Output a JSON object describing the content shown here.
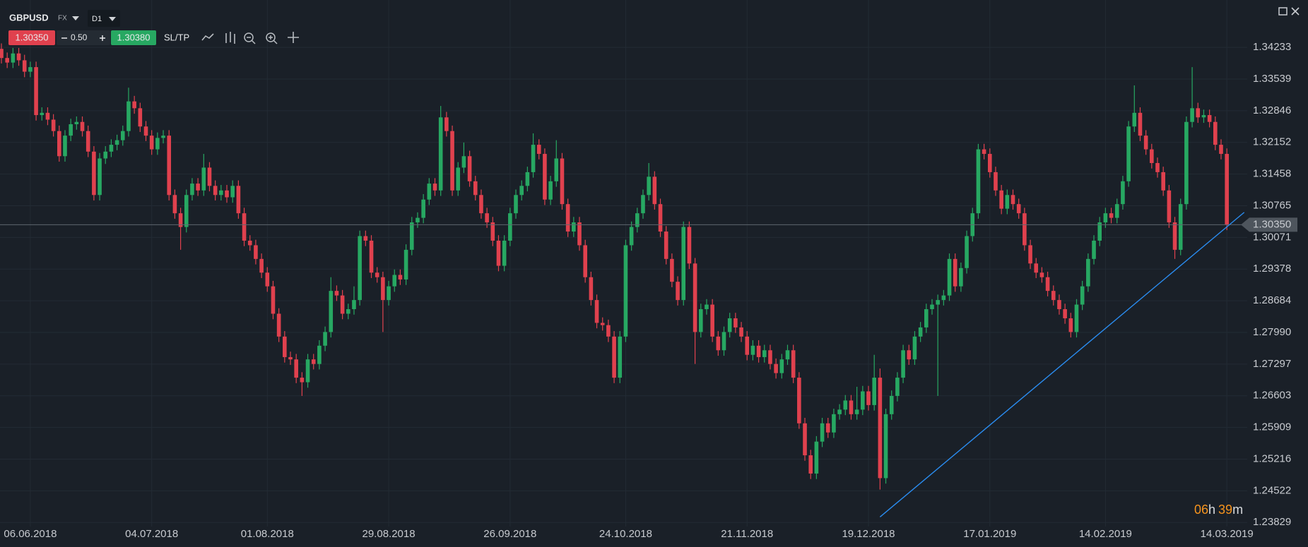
{
  "toolbar": {
    "symbol": "GBPUSD",
    "market": "FX",
    "timeframe": "D1",
    "bid": "1.30350",
    "spread": "0.50",
    "ask": "1.30380",
    "sltp": "SL/TP"
  },
  "timer": {
    "hours": "06",
    "hours_unit": "h",
    "minutes": "39",
    "minutes_unit": "m"
  },
  "chart_data": {
    "type": "candlestick",
    "categories": [
      null,
      null,
      null,
      null,
      null,
      "06.06.2018",
      null,
      null,
      null,
      null,
      null,
      null,
      null,
      null,
      null,
      null,
      null,
      null,
      null,
      null,
      null,
      null,
      null,
      null,
      null,
      null,
      "04.07.2018",
      null,
      null,
      null,
      null,
      null,
      null,
      null,
      null,
      null,
      null,
      null,
      null,
      null,
      null,
      null,
      null,
      null,
      null,
      null,
      "01.08.2018",
      null,
      null,
      null,
      null,
      null,
      null,
      null,
      null,
      null,
      null,
      null,
      null,
      null,
      null,
      null,
      null,
      null,
      null,
      null,
      null,
      "29.08.2018",
      null,
      null,
      null,
      null,
      null,
      null,
      null,
      null,
      null,
      null,
      null,
      null,
      null,
      null,
      null,
      null,
      null,
      null,
      null,
      null,
      "26.09.2018",
      null,
      null,
      null,
      null,
      null,
      null,
      null,
      null,
      null,
      null,
      null,
      null,
      null,
      null,
      null,
      null,
      null,
      null,
      null,
      "24.10.2018",
      null,
      null,
      null,
      null,
      null,
      null,
      null,
      null,
      null,
      null,
      null,
      null,
      null,
      null,
      null,
      null,
      null,
      null,
      null,
      null,
      "21.11.2018",
      null,
      null,
      null,
      null,
      null,
      null,
      null,
      null,
      null,
      null,
      null,
      null,
      null,
      null,
      null,
      null,
      null,
      null,
      null,
      null,
      "19.12.2018",
      null,
      null,
      null,
      null,
      null,
      null,
      null,
      null,
      null,
      null,
      null,
      null,
      null,
      null,
      null,
      null,
      null,
      null,
      null,
      null,
      "17.01.2019",
      null,
      null,
      null,
      null,
      null,
      null,
      null,
      null,
      null,
      null,
      null,
      null,
      null,
      null,
      null,
      null,
      null,
      null,
      null,
      "14.02.2019",
      null,
      null,
      null,
      null,
      null,
      null,
      null,
      null,
      null,
      null,
      null,
      null,
      null,
      null,
      null,
      null,
      null,
      null,
      null,
      null,
      "14.03.2019"
    ],
    "open": [
      1.342,
      1.34,
      1.339,
      1.341,
      1.3395,
      1.337,
      1.338,
      1.3275,
      1.328,
      1.3265,
      1.324,
      1.3185,
      1.323,
      1.3255,
      1.326,
      1.324,
      1.3195,
      1.31,
      1.318,
      1.3195,
      1.321,
      1.322,
      1.324,
      1.3305,
      1.329,
      1.325,
      1.323,
      1.32,
      1.3225,
      1.323,
      1.31,
      1.306,
      1.303,
      1.31,
      1.3125,
      1.311,
      1.316,
      1.312,
      1.31,
      1.311,
      1.3095,
      1.312,
      1.306,
      1.3,
      1.299,
      1.296,
      1.293,
      1.29,
      1.284,
      1.279,
      1.2745,
      1.274,
      1.27,
      1.269,
      1.274,
      1.273,
      1.277,
      1.28,
      1.289,
      1.288,
      1.284,
      1.285,
      1.287,
      1.301,
      1.3,
      1.293,
      1.292,
      1.287,
      1.29,
      1.2925,
      1.2915,
      1.298,
      1.304,
      1.305,
      1.309,
      1.3125,
      1.311,
      1.327,
      1.324,
      1.311,
      1.316,
      1.3185,
      1.313,
      1.31,
      1.306,
      1.304,
      1.3,
      1.2945,
      1.3,
      1.306,
      1.31,
      1.312,
      1.315,
      1.321,
      1.319,
      1.309,
      1.313,
      1.318,
      1.308,
      1.302,
      1.304,
      1.299,
      1.292,
      1.287,
      1.282,
      1.2815,
      1.279,
      1.27,
      1.279,
      1.299,
      1.303,
      1.306,
      1.31,
      1.314,
      1.308,
      1.302,
      1.296,
      1.291,
      1.287,
      1.303,
      1.295,
      1.28,
      1.285,
      1.286,
      1.279,
      1.276,
      1.28,
      1.283,
      1.281,
      1.279,
      1.275,
      1.277,
      1.2745,
      1.276,
      1.273,
      1.271,
      1.274,
      1.276,
      1.27,
      1.26,
      1.253,
      1.249,
      1.256,
      1.26,
      1.258,
      1.262,
      1.263,
      1.265,
      1.262,
      1.263,
      1.267,
      1.264,
      1.27,
      1.248,
      1.262,
      1.266,
      1.27,
      1.276,
      1.274,
      1.279,
      1.281,
      1.285,
      1.286,
      1.287,
      1.288,
      1.296,
      1.29,
      1.294,
      1.301,
      1.306,
      1.32,
      1.319,
      1.315,
      1.311,
      1.307,
      1.31,
      1.308,
      1.306,
      1.299,
      1.295,
      1.293,
      1.292,
      1.289,
      1.287,
      1.285,
      1.283,
      1.28,
      1.286,
      1.29,
      1.296,
      1.3,
      1.304,
      1.306,
      1.305,
      1.308,
      1.313,
      1.325,
      1.328,
      1.323,
      1.32,
      1.317,
      1.315,
      1.311,
      1.304,
      1.298,
      1.308,
      1.326,
      1.329,
      1.327,
      1.3275,
      1.326,
      1.321,
      1.319
    ],
    "high": [
      1.3432,
      1.3412,
      1.3422,
      1.3422,
      1.3407,
      1.3392,
      1.3392,
      1.3292,
      1.3292,
      1.3277,
      1.3252,
      1.3242,
      1.3267,
      1.3272,
      1.3272,
      1.3252,
      1.3207,
      1.3192,
      1.3207,
      1.3222,
      1.3232,
      1.3252,
      1.3335,
      1.3317,
      1.3302,
      1.3262,
      1.3242,
      1.3237,
      1.3242,
      1.3242,
      1.3112,
      1.3072,
      1.3112,
      1.3137,
      1.3137,
      1.319,
      1.3172,
      1.3132,
      1.3122,
      1.3122,
      1.3132,
      1.3132,
      1.3072,
      1.3012,
      1.3002,
      1.2972,
      1.2942,
      1.2912,
      1.2852,
      1.2802,
      1.2757,
      1.2752,
      1.2712,
      1.2752,
      1.2752,
      1.2782,
      1.2812,
      1.292,
      1.2902,
      1.2892,
      1.2862,
      1.29,
      1.3022,
      1.3022,
      1.3012,
      1.2942,
      1.2932,
      1.2912,
      1.2937,
      1.2937,
      1.2992,
      1.3052,
      1.3062,
      1.3102,
      1.3137,
      1.3137,
      1.3295,
      1.3282,
      1.3252,
      1.3172,
      1.3215,
      1.3197,
      1.3142,
      1.3112,
      1.3072,
      1.3052,
      1.3012,
      1.3012,
      1.3072,
      1.3112,
      1.3132,
      1.3162,
      1.3235,
      1.3222,
      1.3202,
      1.3142,
      1.322,
      1.3192,
      1.3092,
      1.3052,
      1.3052,
      1.3002,
      1.2932,
      1.2882,
      1.2832,
      1.2827,
      1.2802,
      1.2802,
      1.3002,
      1.3042,
      1.3072,
      1.3112,
      1.317,
      1.3152,
      1.3092,
      1.3032,
      1.2972,
      1.2922,
      1.3042,
      1.3042,
      1.2962,
      1.2862,
      1.2872,
      1.2872,
      1.2802,
      1.2812,
      1.2842,
      1.2842,
      1.2822,
      1.2802,
      1.2782,
      1.2782,
      1.2772,
      1.2772,
      1.2742,
      1.2752,
      1.2772,
      1.2772,
      1.2712,
      1.2612,
      1.2542,
      1.2572,
      1.2612,
      1.2612,
      1.2632,
      1.2642,
      1.2662,
      1.2662,
      1.268,
      1.2682,
      1.2682,
      1.275,
      1.272,
      1.2632,
      1.2672,
      1.2712,
      1.2772,
      1.2772,
      1.2802,
      1.2822,
      1.2862,
      1.2872,
      1.2882,
      1.2892,
      1.2972,
      1.2972,
      1.2952,
      1.3022,
      1.3072,
      1.3212,
      1.3212,
      1.3202,
      1.3162,
      1.3122,
      1.3112,
      1.3112,
      1.3092,
      1.3072,
      1.3002,
      1.2962,
      1.2942,
      1.2932,
      1.2902,
      1.2882,
      1.2862,
      1.2842,
      1.2872,
      1.2912,
      1.2972,
      1.3012,
      1.3052,
      1.3072,
      1.3072,
      1.3092,
      1.3142,
      1.3262,
      1.334,
      1.3292,
      1.3242,
      1.3212,
      1.3182,
      1.3162,
      1.3122,
      1.3052,
      1.3092,
      1.3272,
      1.338,
      1.3302,
      1.3287,
      1.3287,
      1.3272,
      1.3222,
      1.3202
    ],
    "low": [
      1.3388,
      1.3378,
      1.3378,
      1.3383,
      1.3358,
      1.3358,
      1.3263,
      1.3263,
      1.3253,
      1.3228,
      1.3173,
      1.3173,
      1.3218,
      1.3243,
      1.3228,
      1.3183,
      1.3088,
      1.3088,
      1.3168,
      1.3183,
      1.3198,
      1.3208,
      1.3228,
      1.3278,
      1.3238,
      1.3218,
      1.3188,
      1.3188,
      1.3213,
      1.3088,
      1.3048,
      1.298,
      1.3018,
      1.3088,
      1.3098,
      1.3098,
      1.3108,
      1.3088,
      1.3088,
      1.3083,
      1.3083,
      1.3048,
      1.2988,
      1.2978,
      1.2948,
      1.2918,
      1.2888,
      1.2828,
      1.2778,
      1.2733,
      1.2728,
      1.2688,
      1.266,
      1.2678,
      1.2718,
      1.2718,
      1.2758,
      1.2788,
      1.2868,
      1.2828,
      1.2828,
      1.2838,
      1.2858,
      1.2988,
      1.2918,
      1.2908,
      1.28,
      1.2858,
      1.2888,
      1.2903,
      1.2903,
      1.2968,
      1.3028,
      1.3038,
      1.3078,
      1.3098,
      1.3098,
      1.3228,
      1.3098,
      1.3098,
      1.3148,
      1.3118,
      1.3088,
      1.3048,
      1.3028,
      1.2988,
      1.2933,
      1.2933,
      1.2988,
      1.3048,
      1.3088,
      1.3108,
      1.3138,
      1.3178,
      1.3078,
      1.3078,
      1.3118,
      1.3068,
      1.3008,
      1.3008,
      1.2978,
      1.2908,
      1.2858,
      1.2808,
      1.2803,
      1.2778,
      1.2688,
      1.2688,
      1.2778,
      1.2978,
      1.3018,
      1.3048,
      1.3088,
      1.3068,
      1.3008,
      1.2948,
      1.2898,
      1.2858,
      1.2858,
      1.2938,
      1.273,
      1.2788,
      1.2838,
      1.2778,
      1.2748,
      1.2748,
      1.2788,
      1.2798,
      1.2778,
      1.2738,
      1.2738,
      1.2733,
      1.2733,
      1.2718,
      1.2698,
      1.2698,
      1.2728,
      1.2688,
      1.2588,
      1.2518,
      1.2478,
      1.2478,
      1.2548,
      1.2568,
      1.2568,
      1.2608,
      1.2618,
      1.2608,
      1.2608,
      1.2618,
      1.2628,
      1.2628,
      1.2455,
      1.2468,
      1.2608,
      1.2648,
      1.2688,
      1.2728,
      1.2728,
      1.2778,
      1.2798,
      1.2838,
      1.266,
      1.2858,
      1.2868,
      1.2888,
      1.2888,
      1.2928,
      1.2998,
      1.3048,
      1.3178,
      1.3138,
      1.3098,
      1.3058,
      1.3058,
      1.3068,
      1.3048,
      1.2978,
      1.2938,
      1.2918,
      1.2908,
      1.2878,
      1.2858,
      1.2838,
      1.2818,
      1.2788,
      1.2788,
      1.2848,
      1.2888,
      1.2948,
      1.2988,
      1.3028,
      1.3038,
      1.3038,
      1.3068,
      1.3118,
      1.3238,
      1.3218,
      1.3188,
      1.3158,
      1.3138,
      1.3098,
      1.3028,
      1.296,
      1.2968,
      1.3068,
      1.3248,
      1.3258,
      1.3258,
      1.3248,
      1.3198,
      1.3178,
      1.3023
    ],
    "close": [
      1.34,
      1.339,
      1.341,
      1.3395,
      1.337,
      1.338,
      1.3275,
      1.328,
      1.3265,
      1.324,
      1.3185,
      1.323,
      1.3255,
      1.326,
      1.324,
      1.3195,
      1.31,
      1.318,
      1.3195,
      1.321,
      1.322,
      1.324,
      1.3305,
      1.329,
      1.325,
      1.323,
      1.32,
      1.3225,
      1.323,
      1.31,
      1.306,
      1.303,
      1.31,
      1.3125,
      1.311,
      1.316,
      1.312,
      1.31,
      1.311,
      1.3095,
      1.312,
      1.306,
      1.3,
      1.299,
      1.296,
      1.293,
      1.29,
      1.284,
      1.279,
      1.2745,
      1.274,
      1.27,
      1.269,
      1.274,
      1.273,
      1.277,
      1.28,
      1.289,
      1.288,
      1.284,
      1.285,
      1.287,
      1.301,
      1.3,
      1.293,
      1.292,
      1.287,
      1.29,
      1.2925,
      1.2915,
      1.298,
      1.304,
      1.305,
      1.309,
      1.3125,
      1.311,
      1.327,
      1.324,
      1.311,
      1.316,
      1.3185,
      1.313,
      1.31,
      1.306,
      1.304,
      1.3,
      1.2945,
      1.3,
      1.306,
      1.31,
      1.312,
      1.315,
      1.321,
      1.319,
      1.309,
      1.313,
      1.318,
      1.308,
      1.302,
      1.304,
      1.299,
      1.292,
      1.287,
      1.282,
      1.2815,
      1.279,
      1.27,
      1.279,
      1.299,
      1.303,
      1.306,
      1.31,
      1.314,
      1.308,
      1.302,
      1.296,
      1.291,
      1.287,
      1.303,
      1.295,
      1.28,
      1.285,
      1.286,
      1.279,
      1.276,
      1.28,
      1.283,
      1.281,
      1.279,
      1.275,
      1.277,
      1.2745,
      1.276,
      1.273,
      1.271,
      1.274,
      1.276,
      1.27,
      1.26,
      1.253,
      1.249,
      1.256,
      1.26,
      1.258,
      1.262,
      1.263,
      1.265,
      1.262,
      1.263,
      1.267,
      1.264,
      1.27,
      1.248,
      1.262,
      1.266,
      1.27,
      1.276,
      1.274,
      1.279,
      1.281,
      1.285,
      1.286,
      1.287,
      1.288,
      1.296,
      1.29,
      1.294,
      1.301,
      1.306,
      1.32,
      1.319,
      1.315,
      1.311,
      1.307,
      1.31,
      1.308,
      1.306,
      1.299,
      1.295,
      1.293,
      1.292,
      1.289,
      1.287,
      1.285,
      1.283,
      1.28,
      1.286,
      1.29,
      1.296,
      1.3,
      1.304,
      1.306,
      1.305,
      1.308,
      1.313,
      1.325,
      1.328,
      1.323,
      1.32,
      1.317,
      1.315,
      1.311,
      1.304,
      1.298,
      1.308,
      1.326,
      1.329,
      1.327,
      1.3275,
      1.326,
      1.321,
      1.319,
      1.3035
    ],
    "up_color": "#27a862",
    "down_color": "#e0414e",
    "ylim": [
      1.2374,
      1.3527
    ],
    "yticks": [
      1.34233,
      1.33539,
      1.32846,
      1.32152,
      1.31458,
      1.30765,
      1.30071,
      1.29378,
      1.28684,
      {
        "value": 1.2799,
        "label": "1.27990"
      },
      1.27297,
      1.26603,
      1.25909,
      1.25216,
      1.24522,
      1.23829
    ],
    "grid": true,
    "last_price": {
      "value": 1.3035,
      "label": "1.30350"
    },
    "trendline": {
      "x": [
        152,
        215
      ],
      "values": [
        1.2395,
        1.3062
      ],
      "color": "#2a8cf0"
    }
  }
}
